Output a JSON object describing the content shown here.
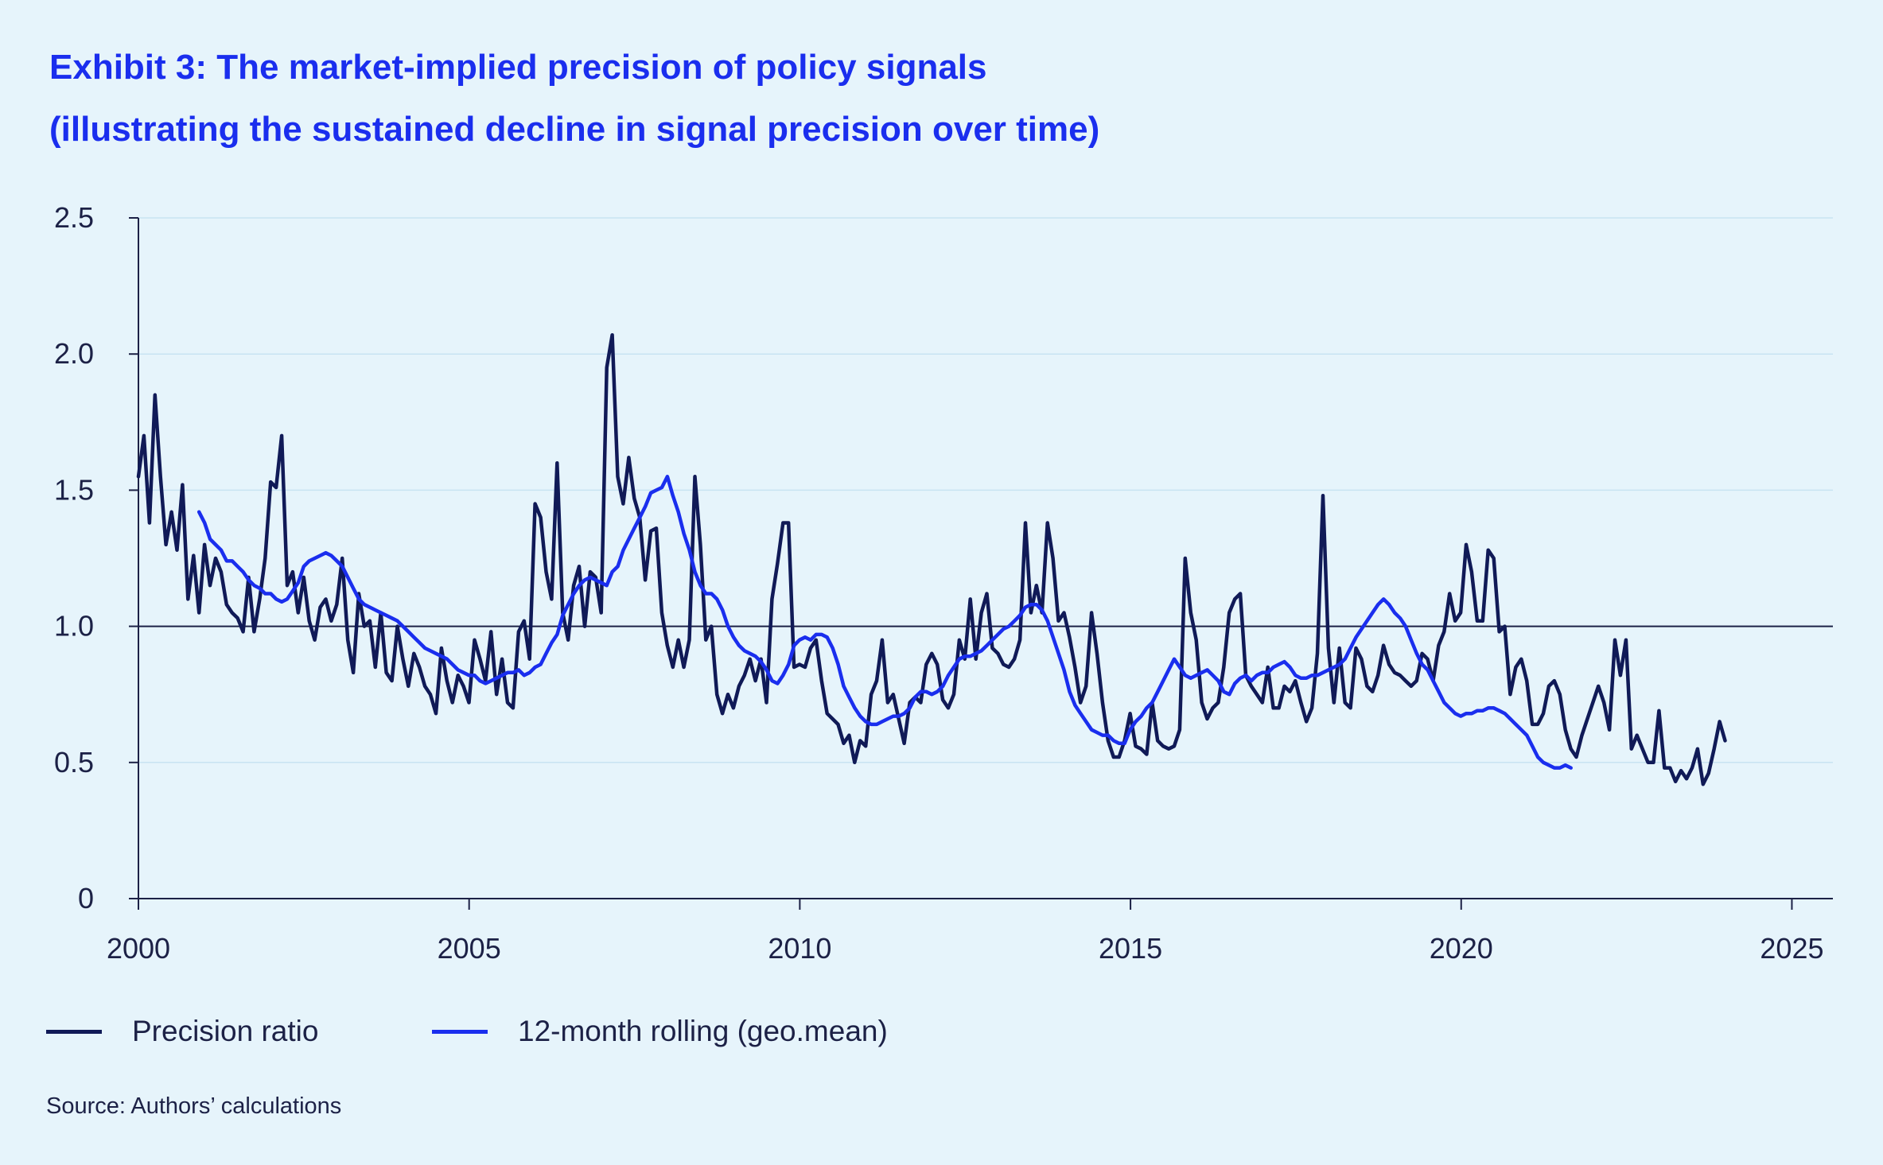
{
  "title": "Exhibit 3: The market-implied precision of policy signals",
  "subtitle": "(illustrating the sustained decline in signal precision over time)",
  "source": "Source: Authors’ calculations",
  "colors": {
    "background": "#e6f4fb",
    "title": "#1a2eee",
    "precision_ratio": "#101a57",
    "rolling": "#1a2eee",
    "gridline": "#c8e3f2",
    "axis": "#1c2146"
  },
  "legend": {
    "series1": "Precision ratio",
    "series2": "12-month rolling (geo.mean)"
  },
  "chart_data": {
    "type": "line",
    "xlabel": "",
    "ylabel": "",
    "xlim": [
      2000.0,
      2025.62
    ],
    "ylim": [
      0,
      2.5
    ],
    "x_ticks": [
      "2000",
      "2005",
      "2010",
      "2015",
      "2020",
      "2025"
    ],
    "y_ticks": [
      "0",
      "0.5",
      "1.0",
      "1.5",
      "2.0",
      "2.5"
    ],
    "reference_line": 1.0,
    "grid": "horizontal",
    "legend_position": "bottom-left",
    "series": [
      {
        "name": "Precision ratio",
        "x_start": 2000.0,
        "x_step": 0.0833,
        "values": [
          1.55,
          1.7,
          1.38,
          1.85,
          1.55,
          1.3,
          1.42,
          1.28,
          1.52,
          1.1,
          1.26,
          1.05,
          1.3,
          1.15,
          1.25,
          1.2,
          1.08,
          1.05,
          1.03,
          0.98,
          1.18,
          0.98,
          1.1,
          1.25,
          1.53,
          1.51,
          1.7,
          1.15,
          1.2,
          1.05,
          1.18,
          1.02,
          0.95,
          1.07,
          1.1,
          1.02,
          1.08,
          1.25,
          0.95,
          0.83,
          1.12,
          1.0,
          1.02,
          0.85,
          1.05,
          0.83,
          0.8,
          1.0,
          0.88,
          0.78,
          0.9,
          0.85,
          0.78,
          0.75,
          0.68,
          0.92,
          0.8,
          0.72,
          0.82,
          0.78,
          0.72,
          0.95,
          0.88,
          0.8,
          0.98,
          0.75,
          0.88,
          0.72,
          0.7,
          0.98,
          1.02,
          0.88,
          1.45,
          1.4,
          1.2,
          1.1,
          1.6,
          1.05,
          0.95,
          1.15,
          1.22,
          1.0,
          1.2,
          1.18,
          1.05,
          1.95,
          2.07,
          1.55,
          1.45,
          1.62,
          1.47,
          1.4,
          1.17,
          1.35,
          1.36,
          1.05,
          0.93,
          0.85,
          0.95,
          0.85,
          0.95,
          1.55,
          1.3,
          0.95,
          1.0,
          0.75,
          0.68,
          0.75,
          0.7,
          0.78,
          0.82,
          0.88,
          0.8,
          0.88,
          0.72,
          1.1,
          1.23,
          1.38,
          1.38,
          0.85,
          0.86,
          0.85,
          0.92,
          0.95,
          0.8,
          0.68,
          0.66,
          0.64,
          0.57,
          0.6,
          0.5,
          0.58,
          0.56,
          0.75,
          0.8,
          0.95,
          0.72,
          0.75,
          0.66,
          0.57,
          0.72,
          0.74,
          0.72,
          0.86,
          0.9,
          0.86,
          0.73,
          0.7,
          0.75,
          0.95,
          0.88,
          1.1,
          0.88,
          1.05,
          1.12,
          0.92,
          0.9,
          0.86,
          0.85,
          0.88,
          0.95,
          1.38,
          1.05,
          1.15,
          1.05,
          1.38,
          1.25,
          1.02,
          1.05,
          0.96,
          0.85,
          0.72,
          0.78,
          1.05,
          0.9,
          0.72,
          0.58,
          0.52,
          0.52,
          0.58,
          0.68,
          0.56,
          0.55,
          0.53,
          0.72,
          0.58,
          0.56,
          0.55,
          0.56,
          0.62,
          1.25,
          1.05,
          0.95,
          0.72,
          0.66,
          0.7,
          0.72,
          0.85,
          1.05,
          1.1,
          1.12,
          0.82,
          0.78,
          0.75,
          0.72,
          0.85,
          0.7,
          0.7,
          0.78,
          0.76,
          0.8,
          0.72,
          0.65,
          0.7,
          0.9,
          1.48,
          0.92,
          0.72,
          0.92,
          0.72,
          0.7,
          0.92,
          0.88,
          0.78,
          0.76,
          0.82,
          0.93,
          0.86,
          0.83,
          0.82,
          0.8,
          0.78,
          0.8,
          0.9,
          0.88,
          0.8,
          0.93,
          0.98,
          1.12,
          1.02,
          1.05,
          1.3,
          1.2,
          1.02,
          1.02,
          1.28,
          1.25,
          0.98,
          1.0,
          0.75,
          0.85,
          0.88,
          0.8,
          0.64,
          0.64,
          0.68,
          0.78,
          0.8,
          0.75,
          0.62,
          0.55,
          0.52,
          0.6,
          0.66,
          0.72,
          0.78,
          0.72,
          0.62,
          0.95,
          0.82,
          0.95,
          0.55,
          0.6,
          0.55,
          0.5,
          0.5,
          0.69,
          0.48,
          0.48,
          0.43,
          0.47,
          0.44,
          0.48,
          0.55,
          0.42,
          0.46,
          0.55,
          0.65,
          0.58
        ]
      },
      {
        "name": "12-month rolling (geo.mean)",
        "x_start": 2000.917,
        "x_step": 0.0833,
        "values": [
          1.42,
          1.38,
          1.32,
          1.3,
          1.28,
          1.24,
          1.24,
          1.22,
          1.2,
          1.17,
          1.15,
          1.14,
          1.12,
          1.12,
          1.1,
          1.09,
          1.1,
          1.13,
          1.16,
          1.22,
          1.24,
          1.25,
          1.26,
          1.27,
          1.26,
          1.24,
          1.22,
          1.18,
          1.14,
          1.1,
          1.08,
          1.07,
          1.06,
          1.05,
          1.04,
          1.03,
          1.02,
          1.0,
          0.98,
          0.96,
          0.94,
          0.92,
          0.91,
          0.9,
          0.89,
          0.88,
          0.86,
          0.84,
          0.83,
          0.82,
          0.82,
          0.8,
          0.79,
          0.8,
          0.81,
          0.82,
          0.83,
          0.83,
          0.84,
          0.82,
          0.83,
          0.85,
          0.86,
          0.9,
          0.94,
          0.97,
          1.04,
          1.08,
          1.12,
          1.15,
          1.17,
          1.18,
          1.17,
          1.16,
          1.15,
          1.2,
          1.22,
          1.28,
          1.32,
          1.36,
          1.4,
          1.44,
          1.49,
          1.5,
          1.51,
          1.55,
          1.48,
          1.42,
          1.34,
          1.28,
          1.2,
          1.15,
          1.12,
          1.12,
          1.1,
          1.06,
          1.0,
          0.96,
          0.93,
          0.91,
          0.9,
          0.89,
          0.87,
          0.84,
          0.8,
          0.79,
          0.82,
          0.86,
          0.93,
          0.95,
          0.96,
          0.95,
          0.97,
          0.97,
          0.96,
          0.92,
          0.86,
          0.78,
          0.74,
          0.7,
          0.67,
          0.65,
          0.64,
          0.64,
          0.65,
          0.66,
          0.67,
          0.67,
          0.68,
          0.7,
          0.74,
          0.76,
          0.76,
          0.75,
          0.76,
          0.78,
          0.82,
          0.85,
          0.88,
          0.89,
          0.89,
          0.9,
          0.91,
          0.93,
          0.95,
          0.97,
          0.99,
          1.0,
          1.02,
          1.04,
          1.07,
          1.08,
          1.08,
          1.06,
          1.02,
          0.96,
          0.9,
          0.84,
          0.76,
          0.71,
          0.68,
          0.65,
          0.62,
          0.61,
          0.6,
          0.6,
          0.58,
          0.57,
          0.57,
          0.62,
          0.65,
          0.67,
          0.7,
          0.72,
          0.76,
          0.8,
          0.84,
          0.88,
          0.85,
          0.82,
          0.81,
          0.82,
          0.83,
          0.84,
          0.82,
          0.8,
          0.76,
          0.75,
          0.79,
          0.81,
          0.82,
          0.8,
          0.82,
          0.83,
          0.83,
          0.85,
          0.86,
          0.87,
          0.85,
          0.82,
          0.81,
          0.81,
          0.82,
          0.82,
          0.83,
          0.84,
          0.85,
          0.86,
          0.88,
          0.92,
          0.96,
          0.99,
          1.02,
          1.05,
          1.08,
          1.1,
          1.08,
          1.05,
          1.03,
          1.0,
          0.95,
          0.9,
          0.86,
          0.84,
          0.8,
          0.76,
          0.72,
          0.7,
          0.68,
          0.67,
          0.68,
          0.68,
          0.69,
          0.69,
          0.7,
          0.7,
          0.69,
          0.68,
          0.66,
          0.64,
          0.62,
          0.6,
          0.56,
          0.52,
          0.5,
          0.49,
          0.48,
          0.48,
          0.49,
          0.48
        ]
      }
    ]
  }
}
